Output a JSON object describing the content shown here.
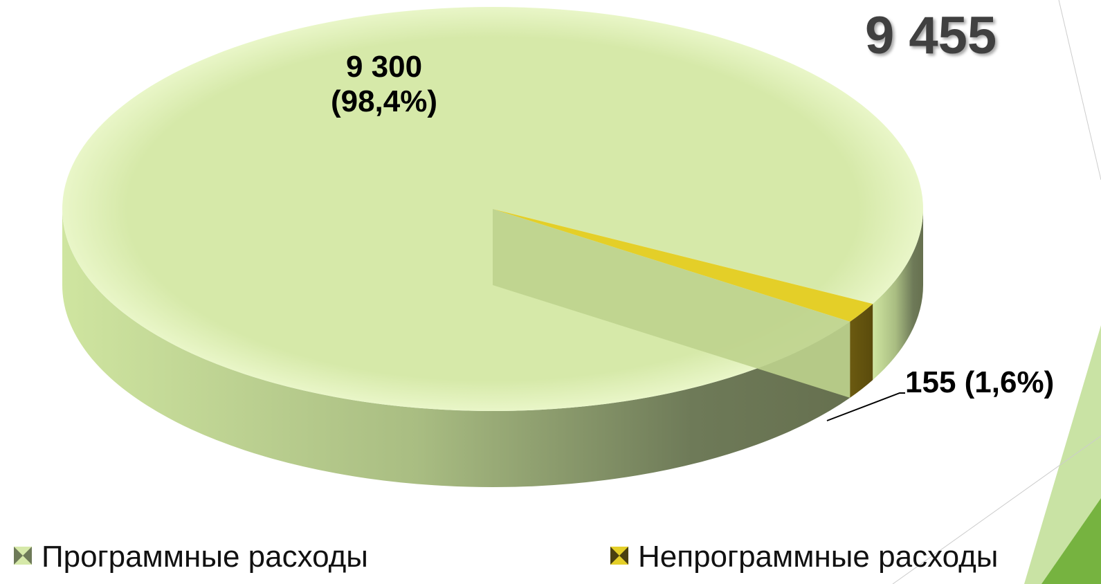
{
  "chart_data": {
    "type": "pie3d",
    "annotation": "9 455",
    "categories": [
      "Программные расходы",
      "Непрограммные расходы"
    ],
    "values": [
      9300,
      155
    ],
    "value_labels": [
      "9 300\n(98,4%)",
      "155 (1,6%)"
    ],
    "colors": [
      "#d6e9a9",
      "#e4cf28"
    ],
    "legend": "bottom"
  }
}
